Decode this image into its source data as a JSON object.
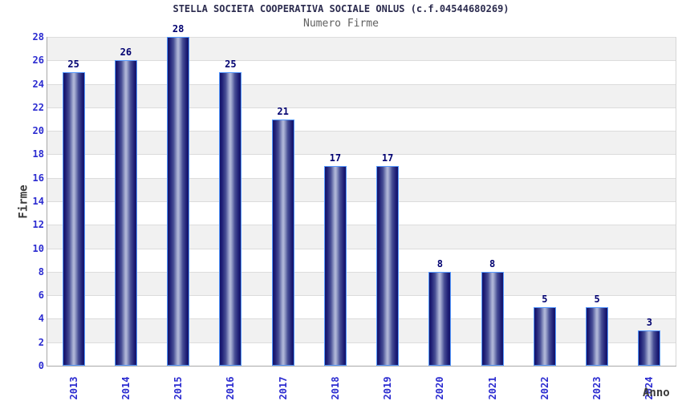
{
  "chart_data": {
    "type": "bar",
    "title": "STELLA SOCIETA COOPERATIVA SOCIALE ONLUS (c.f.04544680269)",
    "subtitle": "Numero Firme",
    "xlabel": "Anno",
    "ylabel": "Firme",
    "categories": [
      "2013",
      "2014",
      "2015",
      "2016",
      "2017",
      "2018",
      "2019",
      "2020",
      "2021",
      "2022",
      "2023",
      "2024"
    ],
    "values": [
      25,
      26,
      28,
      25,
      21,
      17,
      17,
      8,
      8,
      5,
      5,
      3
    ],
    "ylim": [
      0,
      28
    ],
    "ytick_step": 2,
    "grid": "horizontal",
    "legend": "none",
    "plot_bands": "alternating horizontal stripes of 2 units",
    "colors": {
      "title": "#2b2b4e",
      "subtitle": "#606060",
      "axis_title": "#3a3a3a",
      "tick_label": "#2b2bd0",
      "value_label": "#000070",
      "bar_border": "#5599ff",
      "bar_gradient": [
        "#14146a",
        "#1c1c74",
        "#474e95",
        "#9ba3cb",
        "#b4bada"
      ],
      "band_gray": "#f1f1f1",
      "band_white": "#ffffff",
      "gridline": "#dcdcdc",
      "axis_line": "#a8a8a8",
      "plot_edge": "#d6d6d6"
    }
  }
}
